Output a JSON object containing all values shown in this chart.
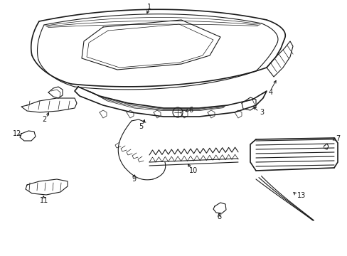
{
  "bg_color": "#ffffff",
  "lc": "#1a1a1a",
  "lw_thick": 1.2,
  "lw_med": 0.8,
  "lw_thin": 0.5,
  "label_fs": 7,
  "figsize": [
    4.89,
    3.6
  ],
  "dpi": 100
}
